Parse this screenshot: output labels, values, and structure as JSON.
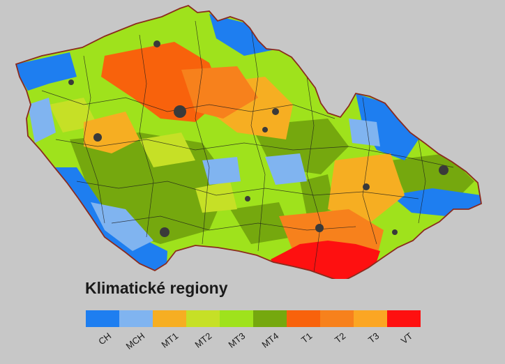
{
  "legend": {
    "title": "Klimatické regiony",
    "items": [
      {
        "code": "CH",
        "color": "#1e7ef0"
      },
      {
        "code": "MCH",
        "color": "#80b4f0"
      },
      {
        "code": "MT1",
        "color": "#f6ae22"
      },
      {
        "code": "MT2",
        "color": "#c6e026"
      },
      {
        "code": "MT3",
        "color": "#9fe21c"
      },
      {
        "code": "MT4",
        "color": "#75a80e"
      },
      {
        "code": "T1",
        "color": "#f8620c"
      },
      {
        "code": "T2",
        "color": "#f7811c"
      },
      {
        "code": "T3",
        "color": "#fba623"
      },
      {
        "code": "VT",
        "color": "#fe1010"
      }
    ]
  },
  "map": {
    "border_color": "#8b2b1e",
    "city_color": "#3a3a3a"
  }
}
